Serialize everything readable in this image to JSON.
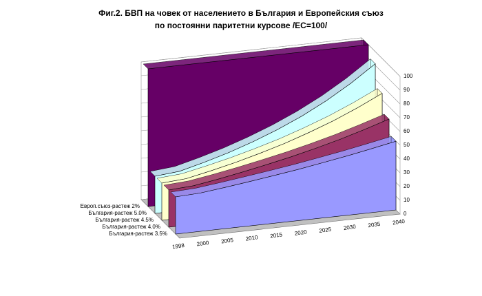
{
  "chart_data": {
    "type": "area3d",
    "title": "Фиг.2. БВП на човек от населението в България и Европейския съюз",
    "subtitle": "по постоянни паритетни курсове /ЕС=100/",
    "categories": [
      "1998",
      "2000",
      "2005",
      "2010",
      "2015",
      "2020",
      "2025",
      "2030",
      "2035",
      "2040"
    ],
    "series": [
      {
        "name": "Европ.съюз-растеж 2%",
        "color": "#660066",
        "values": [
          100,
          100,
          100,
          100,
          100,
          100,
          100,
          100,
          100,
          100
        ]
      },
      {
        "name": "България-растеж 5.0%",
        "color": "#ccffff",
        "values": [
          27,
          28.6,
          33.1,
          38.2,
          44.2,
          51.1,
          59.0,
          68.2,
          78.9,
          91.2
        ]
      },
      {
        "name": "България-растеж 4.5%",
        "color": "#ffffcc",
        "values": [
          27,
          28.3,
          32.0,
          36.1,
          40.8,
          46.0,
          52.0,
          58.6,
          66.2,
          74.7
        ]
      },
      {
        "name": "България-растеж 4.0%",
        "color": "#993366",
        "values": [
          27,
          28.1,
          30.9,
          34.1,
          37.6,
          41.4,
          45.6,
          50.2,
          55.4,
          61.0
        ]
      },
      {
        "name": "България-растеж 3.5%",
        "color": "#9999ff",
        "values": [
          27,
          27.8,
          29.9,
          32.2,
          34.6,
          37.2,
          40.1,
          43.1,
          46.4,
          49.9
        ]
      }
    ],
    "ylim": [
      0,
      100
    ],
    "yticks": [
      0,
      10,
      20,
      30,
      40,
      50,
      60,
      70,
      80,
      90,
      100
    ],
    "grid": true
  }
}
